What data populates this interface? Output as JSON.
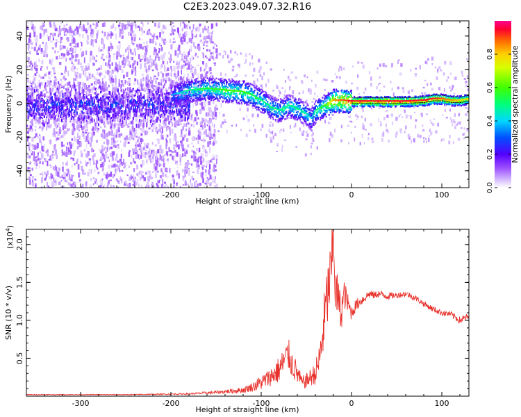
{
  "page": {
    "title": "C2E3.2023.049.07.32.R16"
  },
  "chart_data": [
    {
      "type": "heatmap",
      "xlabel": "Height of straight line (km)",
      "ylabel": "Frequency (Hz)",
      "xlim": [
        -360,
        130
      ],
      "ylim": [
        -50,
        49
      ],
      "xticks": [
        -300,
        -200,
        -100,
        0,
        100
      ],
      "xtick_labels": [
        "-300",
        "-200",
        "-100",
        "0",
        "100"
      ],
      "yticks": [
        -40,
        -20,
        0,
        20,
        40
      ],
      "ytick_labels": [
        "-40",
        "-20",
        "0",
        "20",
        "40"
      ],
      "colorbar": {
        "label": "Normalized spectral amplitude",
        "range": [
          0,
          1
        ],
        "ticks": [
          0.0,
          0.2,
          0.4,
          0.6,
          0.8
        ],
        "tick_labels": [
          "0.0",
          "0.2",
          "0.4",
          "0.6",
          "0.8"
        ],
        "colormap": "rainbow"
      },
      "ridge": {
        "x": [
          -360,
          -300,
          -250,
          -200,
          -180,
          -160,
          -140,
          -120,
          -110,
          -100,
          -90,
          -80,
          -70,
          -60,
          -50,
          -45,
          -40,
          -30,
          -20,
          -10,
          0,
          20,
          40,
          60,
          80,
          90,
          100,
          110,
          120,
          130
        ],
        "y": [
          0,
          0,
          0,
          5,
          8,
          9,
          8,
          7,
          5,
          2,
          -2,
          -4,
          -1,
          -3,
          -6,
          -9,
          -4,
          -1,
          2,
          2,
          1.5,
          1.5,
          1.5,
          1.5,
          2,
          3,
          3,
          2,
          2,
          3
        ],
        "amplitude": [
          0.15,
          0.18,
          0.2,
          0.35,
          0.5,
          0.55,
          0.6,
          0.6,
          0.55,
          0.5,
          0.5,
          0.5,
          0.5,
          0.5,
          0.45,
          0.4,
          0.5,
          0.6,
          0.85,
          0.9,
          0.95,
          0.95,
          0.95,
          0.95,
          0.95,
          0.95,
          0.9,
          0.85,
          0.8,
          0.8
        ]
      }
    },
    {
      "type": "line",
      "xlabel": "Height of straight line (km)",
      "ylabel": "SNR (10 * v/v)",
      "multiplier_label": "(x10",
      "multiplier_exp": "4",
      "multiplier_close": ")",
      "xlim": [
        -360,
        130
      ],
      "ylim": [
        0,
        2.2
      ],
      "xticks": [
        -300,
        -200,
        -100,
        0,
        100
      ],
      "xtick_labels": [
        "-300",
        "-200",
        "-100",
        "0",
        "100"
      ],
      "yticks": [
        0.5,
        1.0,
        1.5,
        2.0
      ],
      "ytick_labels": [
        "0.5",
        "1.0",
        "1.5",
        "2.0"
      ],
      "series": [
        {
          "name": "SNR",
          "color": "#e8302a",
          "x": [
            -360,
            -250,
            -180,
            -150,
            -120,
            -110,
            -100,
            -90,
            -80,
            -75,
            -70,
            -65,
            -60,
            -55,
            -50,
            -45,
            -40,
            -35,
            -32,
            -30,
            -28,
            -25,
            -22,
            -20,
            -18,
            -15,
            -12,
            -10,
            -8,
            -5,
            -2,
            0,
            5,
            10,
            15,
            20,
            25,
            30,
            40,
            50,
            60,
            70,
            80,
            90,
            100,
            110,
            120,
            130
          ],
          "y": [
            0.02,
            0.02,
            0.03,
            0.05,
            0.08,
            0.12,
            0.18,
            0.25,
            0.35,
            0.45,
            0.55,
            0.4,
            0.3,
            0.18,
            0.2,
            0.25,
            0.3,
            0.5,
            0.8,
            1.0,
            1.2,
            1.45,
            1.7,
            2.2,
            1.4,
            1.3,
            1.1,
            1.2,
            1.35,
            1.25,
            1.15,
            1.1,
            1.2,
            1.25,
            1.3,
            1.35,
            1.33,
            1.35,
            1.32,
            1.33,
            1.35,
            1.3,
            1.22,
            1.15,
            1.1,
            1.08,
            1.0,
            1.05
          ],
          "noise": [
            0.005,
            0.005,
            0.01,
            0.02,
            0.04,
            0.06,
            0.1,
            0.12,
            0.18,
            0.2,
            0.22,
            0.18,
            0.15,
            0.08,
            0.1,
            0.12,
            0.15,
            0.25,
            0.35,
            0.4,
            0.45,
            0.45,
            0.4,
            0.4,
            0.35,
            0.3,
            0.25,
            0.25,
            0.2,
            0.15,
            0.12,
            0.1,
            0.08,
            0.07,
            0.06,
            0.06,
            0.05,
            0.05,
            0.05,
            0.04,
            0.04,
            0.04,
            0.04,
            0.04,
            0.04,
            0.04,
            0.05,
            0.05
          ]
        }
      ]
    }
  ]
}
